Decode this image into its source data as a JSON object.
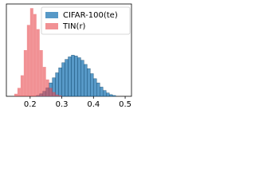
{
  "chart_data": {
    "type": "histogram",
    "series": [
      {
        "name": "CIFAR-100(te)",
        "color": "#1f77b4",
        "bins": [
          0.22,
          0.23,
          0.24,
          0.25,
          0.26,
          0.27,
          0.28,
          0.29,
          0.3,
          0.31,
          0.32,
          0.33,
          0.34,
          0.35,
          0.36,
          0.37,
          0.38,
          0.39,
          0.4,
          0.41,
          0.42,
          0.43,
          0.44,
          0.45,
          0.46,
          0.47
        ],
        "values": [
          1,
          3,
          6,
          10,
          16,
          22,
          28,
          34,
          40,
          44,
          47,
          49,
          48,
          46,
          43,
          38,
          33,
          27,
          21,
          16,
          11,
          7,
          4,
          2,
          1
        ]
      },
      {
        "name": "TIN(r)",
        "color": "#e8474c",
        "bins": [
          0.15,
          0.16,
          0.17,
          0.18,
          0.19,
          0.2,
          0.21,
          0.22,
          0.23,
          0.24,
          0.25,
          0.26,
          0.27,
          0.28,
          0.29,
          0.3
        ],
        "values": [
          3,
          10,
          25,
          55,
          85,
          105,
          98,
          80,
          55,
          35,
          20,
          10,
          5,
          2,
          1
        ]
      }
    ],
    "xlim": [
      0.125,
      0.52
    ],
    "ylim": [
      0,
      110
    ],
    "xticks": [
      0.2,
      0.3,
      0.4,
      0.5
    ],
    "legend": "upper right"
  }
}
